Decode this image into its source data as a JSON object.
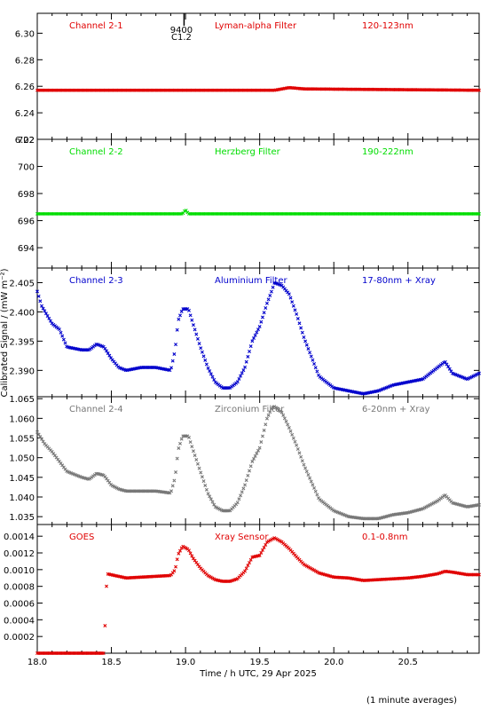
{
  "figure": {
    "xlabel": "Time / h UTC, 29 Apr 2025",
    "ylabel": "Calibrated Signal / (mW m⁻²)",
    "footnote": "(1 minute averages)",
    "x_ticks": [
      "18.0",
      "18.5",
      "19.0",
      "19.5",
      "20.0",
      "20.5"
    ],
    "xlim": [
      18.0,
      20.98
    ],
    "flare_marker": {
      "time": 18.99,
      "label_top": "9400",
      "label_bottom": "C1.2"
    }
  },
  "chart_data": [
    {
      "type": "scatter",
      "channel": "Channel 2-1",
      "filter": "Lyman-alpha Filter",
      "band": "120-123nm",
      "color": "#e00000",
      "ylim": [
        6.22,
        6.315
      ],
      "y_ticks": [
        "6.22",
        "6.24",
        "6.26",
        "6.28",
        "6.30"
      ],
      "x": [
        18.0,
        19.0,
        19.6,
        19.7,
        19.8,
        20.98
      ],
      "y": [
        6.257,
        6.257,
        6.257,
        6.259,
        6.258,
        6.257
      ]
    },
    {
      "type": "scatter",
      "channel": "Channel 2-2",
      "filter": "Herzberg Filter",
      "band": "190-222nm",
      "color": "#00dd00",
      "ylim": [
        692.5,
        702.0
      ],
      "y_ticks": [
        "694",
        "696",
        "698",
        "700",
        "702"
      ],
      "x": [
        18.0,
        18.98,
        19.0,
        19.02,
        20.98
      ],
      "y": [
        696.5,
        696.5,
        696.8,
        696.5,
        696.5
      ]
    },
    {
      "type": "scatter",
      "channel": "Channel 2-3",
      "filter": "Aluminium Filter",
      "band": "17-80nm + Xray",
      "color": "#0000cc",
      "ylim": [
        2.3855,
        2.4075
      ],
      "y_ticks": [
        "2.390",
        "2.395",
        "2.400",
        "2.405"
      ],
      "x": [
        18.0,
        18.03,
        18.1,
        18.15,
        18.2,
        18.3,
        18.35,
        18.4,
        18.45,
        18.5,
        18.55,
        18.6,
        18.7,
        18.8,
        18.9,
        18.93,
        18.95,
        18.98,
        19.02,
        19.05,
        19.1,
        19.15,
        19.2,
        19.25,
        19.3,
        19.35,
        19.4,
        19.45,
        19.5,
        19.55,
        19.58,
        19.6,
        19.65,
        19.7,
        19.75,
        19.8,
        19.9,
        20.0,
        20.1,
        20.2,
        20.3,
        20.4,
        20.5,
        20.6,
        20.7,
        20.75,
        20.8,
        20.9,
        20.98
      ],
      "y": [
        2.4035,
        2.401,
        2.398,
        2.397,
        2.394,
        2.3935,
        2.3935,
        2.3945,
        2.394,
        2.392,
        2.3905,
        2.39,
        2.3905,
        2.3905,
        2.39,
        2.3935,
        2.3985,
        2.4005,
        2.4005,
        2.398,
        2.394,
        2.3905,
        2.388,
        2.387,
        2.387,
        2.388,
        2.3905,
        2.395,
        2.3975,
        2.4015,
        2.4035,
        2.405,
        2.4045,
        2.403,
        2.3995,
        2.3955,
        2.389,
        2.387,
        2.3865,
        2.386,
        2.3865,
        2.3875,
        2.388,
        2.3885,
        2.3905,
        2.3915,
        2.3895,
        2.3885,
        2.3895
      ]
    },
    {
      "type": "scatter",
      "channel": "Channel 2-4",
      "filter": "Zirconium Filter",
      "band": "6-20nm + Xray",
      "color": "#777777",
      "ylim": [
        1.033,
        1.0655
      ],
      "y_ticks": [
        "1.035",
        "1.040",
        "1.045",
        "1.050",
        "1.055",
        "1.060",
        "1.065"
      ],
      "x": [
        18.0,
        18.05,
        18.1,
        18.15,
        18.2,
        18.3,
        18.35,
        18.4,
        18.45,
        18.5,
        18.55,
        18.6,
        18.7,
        18.8,
        18.9,
        18.93,
        18.95,
        18.98,
        19.02,
        19.05,
        19.1,
        19.15,
        19.2,
        19.25,
        19.3,
        19.35,
        19.4,
        19.45,
        19.5,
        19.55,
        19.58,
        19.6,
        19.65,
        19.7,
        19.75,
        19.8,
        19.9,
        20.0,
        20.1,
        20.2,
        20.3,
        20.4,
        20.5,
        20.6,
        20.7,
        20.75,
        20.8,
        20.9,
        20.98
      ],
      "y": [
        1.0565,
        1.0535,
        1.0515,
        1.049,
        1.0465,
        1.045,
        1.0445,
        1.046,
        1.0455,
        1.043,
        1.042,
        1.0415,
        1.0415,
        1.0415,
        1.041,
        1.045,
        1.052,
        1.0555,
        1.0555,
        1.052,
        1.0465,
        1.041,
        1.0375,
        1.0365,
        1.0365,
        1.0385,
        1.043,
        1.049,
        1.0525,
        1.06,
        1.0625,
        1.063,
        1.0615,
        1.0575,
        1.053,
        1.048,
        1.0395,
        1.0365,
        1.035,
        1.0345,
        1.0345,
        1.0355,
        1.036,
        1.037,
        1.039,
        1.0405,
        1.0385,
        1.0375,
        1.038
      ]
    },
    {
      "type": "scatter",
      "channel": "GOES",
      "filter": "Xray Sensor",
      "band": "0.1-0.8nm",
      "color": "#e00000",
      "ylim": [
        0.0,
        0.00154
      ],
      "y_ticks": [
        "0.0002",
        "0.0004",
        "0.0006",
        "0.0008",
        "0.0010",
        "0.0012",
        "0.0014"
      ],
      "x": [
        18.0,
        18.45,
        18.47,
        18.6,
        18.7,
        18.8,
        18.9,
        18.93,
        18.95,
        18.98,
        19.02,
        19.05,
        19.1,
        19.15,
        19.2,
        19.25,
        19.3,
        19.35,
        19.4,
        19.45,
        19.5,
        19.55,
        19.6,
        19.65,
        19.7,
        19.75,
        19.8,
        19.9,
        20.0,
        20.1,
        20.2,
        20.3,
        20.4,
        20.5,
        20.6,
        20.7,
        20.75,
        20.8,
        20.9,
        20.98
      ],
      "y": [
        0.0,
        0.0,
        0.00095,
        0.0009,
        0.00091,
        0.00092,
        0.00093,
        0.001,
        0.00118,
        0.00128,
        0.00124,
        0.00114,
        0.00102,
        0.00093,
        0.00088,
        0.00086,
        0.00086,
        0.00089,
        0.00098,
        0.00115,
        0.00117,
        0.00133,
        0.00138,
        0.00133,
        0.00125,
        0.00115,
        0.00106,
        0.00096,
        0.00091,
        0.0009,
        0.00087,
        0.00088,
        0.00089,
        0.0009,
        0.00092,
        0.00095,
        0.00098,
        0.00097,
        0.00094,
        0.00094
      ]
    }
  ]
}
